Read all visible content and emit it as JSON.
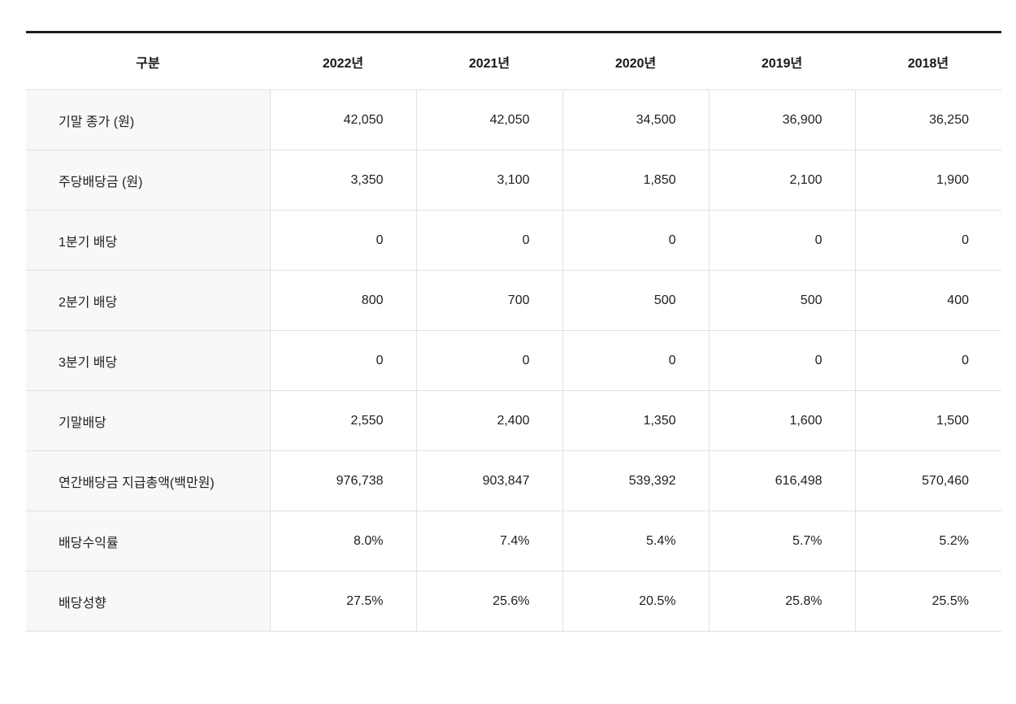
{
  "colors": {
    "page_background": "#ffffff",
    "top_border": "#1c1e21",
    "grid_border": "#e1e1e1",
    "label_column_background": "#f7f9f6",
    "text": "#1f1f1f"
  },
  "chart_data": {
    "type": "table",
    "title": "",
    "legend": "none",
    "grid": "on",
    "columns": [
      "구분",
      "2022년",
      "2021년",
      "2020년",
      "2019년",
      "2018년"
    ],
    "rows": [
      {
        "label": "기말 종가 (원)",
        "values": [
          "42,050",
          "42,050",
          "34,500",
          "36,900",
          "36,250"
        ]
      },
      {
        "label": "주당배당금 (원)",
        "values": [
          "3,350",
          "3,100",
          "1,850",
          "2,100",
          "1,900"
        ]
      },
      {
        "label": "1분기 배당",
        "values": [
          "0",
          "0",
          "0",
          "0",
          "0"
        ]
      },
      {
        "label": "2분기 배당",
        "values": [
          "800",
          "700",
          "500",
          "500",
          "400"
        ]
      },
      {
        "label": "3분기 배당",
        "values": [
          "0",
          "0",
          "0",
          "0",
          "0"
        ]
      },
      {
        "label": "기말배당",
        "values": [
          "2,550",
          "2,400",
          "1,350",
          "1,600",
          "1,500"
        ]
      },
      {
        "label": "연간배당금 지급총액(백만원)",
        "values": [
          "976,738",
          "903,847",
          "539,392",
          "616,498",
          "570,460"
        ]
      },
      {
        "label": "배당수익률",
        "values": [
          "8.0%",
          "7.4%",
          "5.4%",
          "5.7%",
          "5.2%"
        ]
      },
      {
        "label": "배당성향",
        "values": [
          "27.5%",
          "25.6%",
          "20.5%",
          "25.8%",
          "25.5%"
        ]
      }
    ]
  }
}
